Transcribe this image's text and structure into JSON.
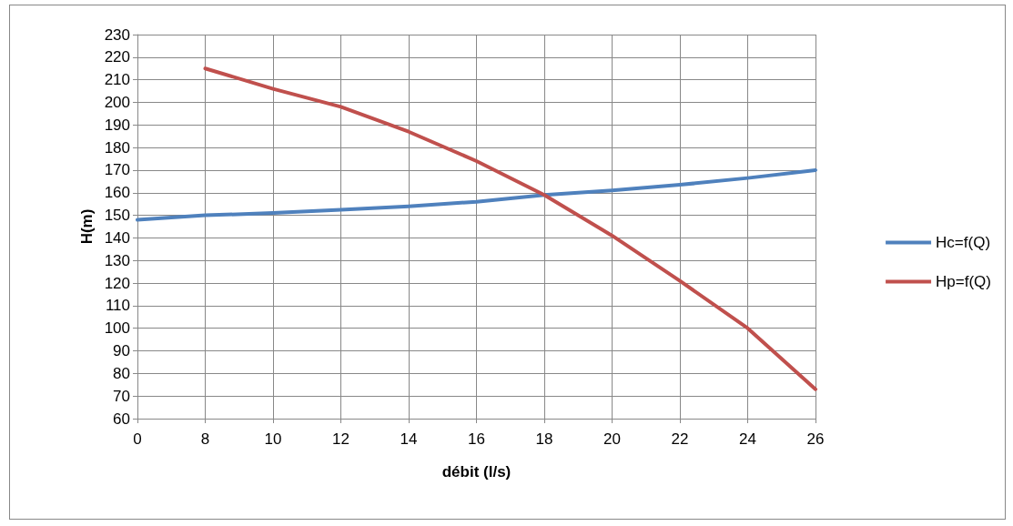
{
  "chart_data": {
    "type": "line",
    "xlabel": "débit (l/s)",
    "ylabel": "H(m)",
    "categories": [
      "0",
      "8",
      "10",
      "12",
      "14",
      "16",
      "18",
      "20",
      "22",
      "24",
      "26"
    ],
    "series": [
      {
        "name": "Hc=f(Q)",
        "color": "#4f81bd",
        "values": [
          148,
          150,
          151,
          152.5,
          154,
          156,
          159,
          161,
          163.5,
          166.5,
          170
        ]
      },
      {
        "name": "Hp=f(Q)",
        "color": "#c0504d",
        "values": [
          null,
          215,
          206,
          198,
          187,
          174,
          159,
          141,
          121,
          100,
          73
        ]
      }
    ],
    "ylim": [
      60,
      230
    ],
    "yticks": [
      60,
      70,
      80,
      90,
      100,
      110,
      120,
      130,
      140,
      150,
      160,
      170,
      180,
      190,
      200,
      210,
      220,
      230
    ],
    "grid": true,
    "legend": "right",
    "marker": "none",
    "line_style": "solid"
  }
}
